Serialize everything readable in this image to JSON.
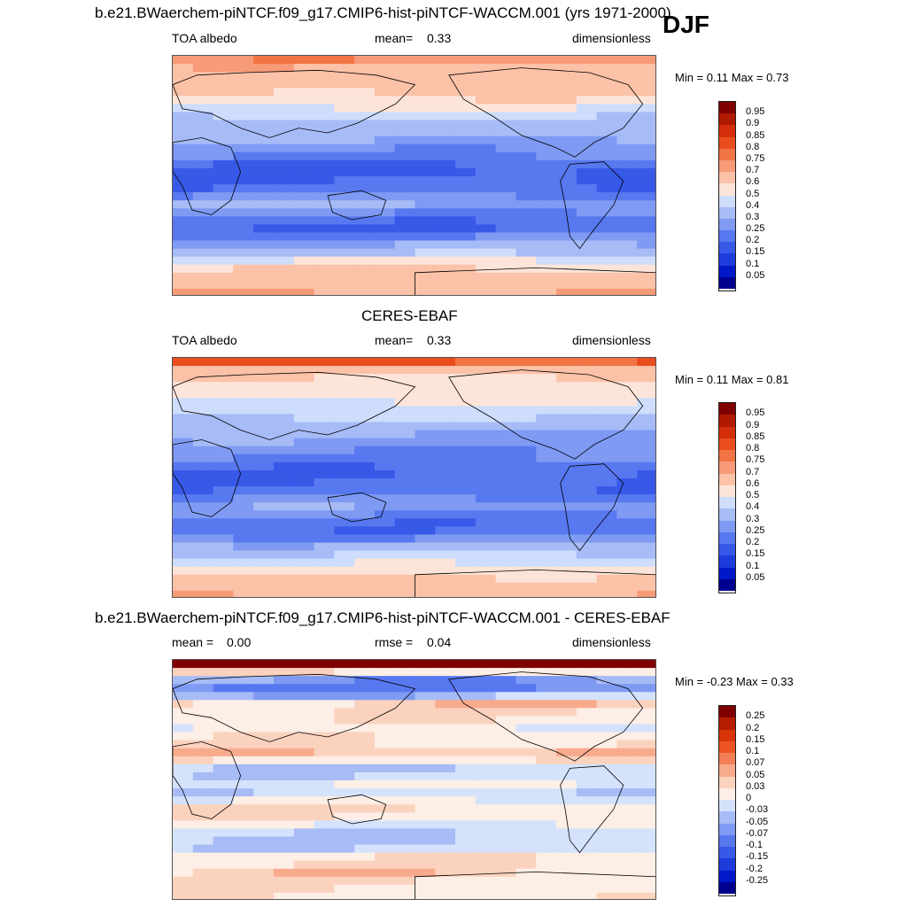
{
  "figure": {
    "season": "DJF"
  },
  "colors": {
    "abs_levels": [
      "#00008f",
      "#0019c8",
      "#1e3cdc",
      "#3759e8",
      "#5878f0",
      "#7e9af3",
      "#a7bbf6",
      "#cdddfb",
      "#fde4d8",
      "#fbc2a8",
      "#f79a78",
      "#f27445",
      "#e94d1e",
      "#d42e0a",
      "#b01a00",
      "#7f0000"
    ],
    "diff_levels": [
      "#00008f",
      "#0019c8",
      "#1e3cdc",
      "#3759e8",
      "#5878f0",
      "#7e9af3",
      "#a7bbf6",
      "#d4e3fb",
      "#fdeee6",
      "#fbd2be",
      "#f8aa8c",
      "#f47e55",
      "#ed5424",
      "#d8340b",
      "#b51c00",
      "#7f0000"
    ],
    "land_outline": "#000000"
  },
  "chart_data": [
    {
      "type": "heatmap",
      "title": "b.e21.BWaerchem-piNTCF.f09_g17.CMIP6-hist-piNTCF-WACCM.001 (yrs 1971-2000)",
      "left_label": "TOA albedo",
      "center_label": "mean=",
      "center_value": "0.33",
      "right_label": "dimensionless",
      "min_label": "Min =",
      "min_value": "0.11",
      "max_label": "Max =",
      "max_value": "0.73",
      "colorbar_ticks": [
        "0.95",
        "0.9",
        "0.85",
        "0.8",
        "0.75",
        "0.7",
        "0.6",
        "0.5",
        "0.4",
        "0.3",
        "0.25",
        "0.2",
        "0.15",
        "0.1",
        "0.05"
      ],
      "zonal_profile": [
        0.73,
        0.68,
        0.66,
        0.64,
        0.62,
        0.58,
        0.5,
        0.42,
        0.36,
        0.33,
        0.3,
        0.27,
        0.24,
        0.2,
        0.18,
        0.2,
        0.22,
        0.26,
        0.3,
        0.26,
        0.22,
        0.2,
        0.24,
        0.3,
        0.38,
        0.5,
        0.6,
        0.64,
        0.66,
        0.7
      ]
    },
    {
      "type": "heatmap",
      "title": "CERES-EBAF",
      "left_label": "TOA albedo",
      "center_label": "mean=",
      "center_value": "0.33",
      "right_label": "dimensionless",
      "min_label": "Min =",
      "min_value": "0.11",
      "max_label": "Max =",
      "max_value": "0.81",
      "colorbar_ticks": [
        "0.95",
        "0.9",
        "0.85",
        "0.8",
        "0.75",
        "0.7",
        "0.6",
        "0.5",
        "0.4",
        "0.3",
        "0.25",
        "0.2",
        "0.15",
        "0.1",
        "0.05"
      ],
      "zonal_profile": [
        0.81,
        0.66,
        0.6,
        0.56,
        0.54,
        0.5,
        0.46,
        0.4,
        0.34,
        0.3,
        0.28,
        0.26,
        0.24,
        0.22,
        0.2,
        0.21,
        0.22,
        0.25,
        0.28,
        0.25,
        0.22,
        0.22,
        0.26,
        0.32,
        0.4,
        0.48,
        0.56,
        0.62,
        0.64,
        0.68
      ]
    },
    {
      "type": "heatmap",
      "title": "b.e21.BWaerchem-piNTCF.f09_g17.CMIP6-hist-piNTCF-WACCM.001 - CERES-EBAF",
      "left_label": "mean =",
      "left_value": "0.00",
      "center_label": "rmse =",
      "center_value": "0.04",
      "right_label": "dimensionless",
      "min_label": "Min =",
      "min_value": "-0.23",
      "max_label": "Max =",
      "max_value": "0.33",
      "colorbar_ticks": [
        "0.25",
        "0.2",
        "0.15",
        "0.1",
        "0.07",
        "0.05",
        "0.03",
        "0",
        "-0.03",
        "-0.05",
        "-0.07",
        "-0.1",
        "-0.15",
        "-0.2",
        "-0.25"
      ],
      "zonal_profile": [
        0.33,
        0.02,
        -0.06,
        -0.08,
        -0.04,
        0.04,
        0.03,
        0.02,
        0.01,
        0.02,
        0.03,
        0.05,
        0.02,
        -0.03,
        -0.02,
        0.0,
        -0.02,
        0.0,
        0.03,
        0.02,
        0.0,
        -0.02,
        -0.03,
        -0.02,
        0.02,
        0.03,
        0.04,
        0.03,
        0.02,
        0.02
      ]
    }
  ]
}
